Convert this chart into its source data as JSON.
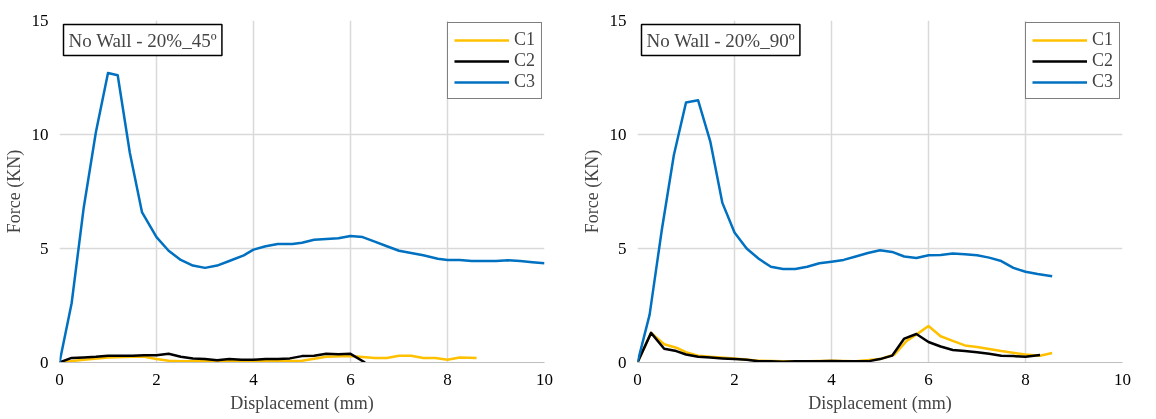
{
  "chart_data": [
    {
      "type": "line",
      "title": "No Wall - 20%_45º",
      "xlabel": "Displacement (mm)",
      "ylabel": "Force (KN)",
      "xlim": [
        0,
        10
      ],
      "ylim": [
        0,
        15
      ],
      "xticks": [
        0,
        2,
        4,
        6,
        8,
        10
      ],
      "yticks": [
        0,
        5,
        10,
        15
      ],
      "grid": true,
      "legend": "top right",
      "line_style": "solid",
      "marker": "none",
      "series": [
        {
          "name": "C1",
          "color": "#ffc000",
          "x": [
            0,
            0.5,
            1,
            1.5,
            1.75,
            2,
            2.25,
            2.5,
            3,
            3.5,
            4,
            4.5,
            5,
            5.5,
            6,
            6.5,
            6.75,
            7,
            7.25,
            7.5,
            7.75,
            8,
            8.25,
            8.6
          ],
          "values": [
            0,
            0.12,
            0.22,
            0.25,
            0.25,
            0.15,
            0.08,
            0.05,
            0.05,
            0.05,
            0.05,
            0.05,
            0.08,
            0.25,
            0.28,
            0.2,
            0.2,
            0.3,
            0.3,
            0.2,
            0.2,
            0.12,
            0.22,
            0.2
          ]
        },
        {
          "name": "C2",
          "color": "#000000",
          "x": [
            0,
            0.25,
            0.5,
            0.75,
            1.0,
            1.25,
            1.5,
            1.75,
            2.0,
            2.25,
            2.5,
            2.75,
            3.0,
            3.25,
            3.5,
            3.75,
            4.0,
            4.25,
            4.5,
            4.75,
            5.0,
            5.25,
            5.5,
            5.75,
            6.0,
            6.3
          ],
          "values": [
            0,
            0.2,
            0.22,
            0.25,
            0.3,
            0.3,
            0.3,
            0.32,
            0.32,
            0.38,
            0.25,
            0.18,
            0.15,
            0.1,
            0.15,
            0.12,
            0.12,
            0.15,
            0.15,
            0.18,
            0.28,
            0.3,
            0.38,
            0.36,
            0.38,
            0.0
          ]
        },
        {
          "name": "C3",
          "color": "#0070c0",
          "x": [
            0,
            0.25,
            0.5,
            0.75,
            1.0,
            1.2,
            1.45,
            1.7,
            2.0,
            2.25,
            2.5,
            2.75,
            3.0,
            3.25,
            3.5,
            3.8,
            4.0,
            4.25,
            4.5,
            4.8,
            5.0,
            5.25,
            5.5,
            5.75,
            6.0,
            6.25,
            6.5,
            6.75,
            7.0,
            7.25,
            7.5,
            7.8,
            8.0,
            8.25,
            8.5,
            8.75,
            9.0,
            9.25,
            9.5,
            9.75,
            10
          ],
          "values": [
            0,
            2.6,
            6.8,
            10.1,
            12.7,
            12.6,
            9.2,
            6.6,
            5.5,
            4.9,
            4.5,
            4.25,
            4.15,
            4.25,
            4.45,
            4.7,
            4.95,
            5.1,
            5.2,
            5.2,
            5.25,
            5.38,
            5.42,
            5.45,
            5.55,
            5.5,
            5.3,
            5.1,
            4.9,
            4.8,
            4.7,
            4.55,
            4.5,
            4.5,
            4.45,
            4.45,
            4.45,
            4.48,
            4.45,
            4.4,
            4.35
          ]
        }
      ]
    },
    {
      "type": "line",
      "title": "No Wall - 20%_90º",
      "xlabel": "Displacement (mm)",
      "ylabel": "Force (KN)",
      "xlim": [
        0,
        10
      ],
      "ylim": [
        0,
        15
      ],
      "xticks": [
        0,
        2,
        4,
        6,
        8,
        10
      ],
      "yticks": [
        0,
        5,
        10,
        15
      ],
      "grid": true,
      "legend": "top right",
      "line_style": "solid",
      "marker": "none",
      "series": [
        {
          "name": "C1",
          "color": "#ffc000",
          "x": [
            0,
            0.28,
            0.55,
            0.8,
            1.0,
            1.25,
            1.5,
            2.0,
            2.5,
            3.0,
            3.5,
            4.0,
            4.5,
            5.0,
            5.3,
            5.55,
            5.8,
            6.0,
            6.25,
            6.5,
            6.75,
            7.0,
            7.5,
            8.0,
            8.3,
            8.55
          ],
          "values": [
            0,
            1.3,
            0.8,
            0.65,
            0.45,
            0.3,
            0.25,
            0.18,
            0.08,
            0.05,
            0.05,
            0.08,
            0.05,
            0.15,
            0.35,
            0.95,
            1.3,
            1.6,
            1.15,
            0.95,
            0.75,
            0.68,
            0.5,
            0.35,
            0.3,
            0.42
          ]
        },
        {
          "name": "C2",
          "color": "#000000",
          "x": [
            0,
            0.28,
            0.55,
            0.8,
            1.0,
            1.25,
            1.5,
            1.75,
            2.0,
            2.25,
            2.5,
            2.75,
            3,
            3.25,
            3.5,
            3.75,
            4,
            4.25,
            4.5,
            4.75,
            5.0,
            5.25,
            5.5,
            5.75,
            6.0,
            6.25,
            6.5,
            6.75,
            7.0,
            7.25,
            7.5,
            7.75,
            8.0,
            8.3
          ],
          "values": [
            0,
            1.3,
            0.6,
            0.5,
            0.35,
            0.25,
            0.22,
            0.18,
            0.15,
            0.12,
            0.05,
            0.05,
            0.03,
            0.05,
            0.05,
            0.05,
            0.07,
            0.05,
            0.05,
            0.05,
            0.15,
            0.3,
            1.05,
            1.25,
            0.9,
            0.7,
            0.55,
            0.5,
            0.45,
            0.38,
            0.3,
            0.28,
            0.25,
            0.33
          ]
        },
        {
          "name": "C3",
          "color": "#0070c0",
          "x": [
            0,
            0.25,
            0.5,
            0.75,
            1.0,
            1.25,
            1.5,
            1.75,
            2.0,
            2.25,
            2.5,
            2.75,
            3.0,
            3.25,
            3.5,
            3.75,
            4,
            4.25,
            4.5,
            4.75,
            5.0,
            5.25,
            5.5,
            5.75,
            6.0,
            6.25,
            6.5,
            6.75,
            7.0,
            7.25,
            7.5,
            7.75,
            8.0,
            8.25,
            8.55
          ],
          "values": [
            0,
            2.1,
            5.8,
            9.1,
            11.4,
            11.5,
            9.7,
            7.0,
            5.7,
            5.0,
            4.55,
            4.2,
            4.1,
            4.1,
            4.2,
            4.35,
            4.42,
            4.5,
            4.65,
            4.8,
            4.92,
            4.85,
            4.65,
            4.58,
            4.7,
            4.72,
            4.78,
            4.75,
            4.7,
            4.6,
            4.45,
            4.15,
            3.98,
            3.88,
            3.78
          ]
        }
      ]
    }
  ]
}
